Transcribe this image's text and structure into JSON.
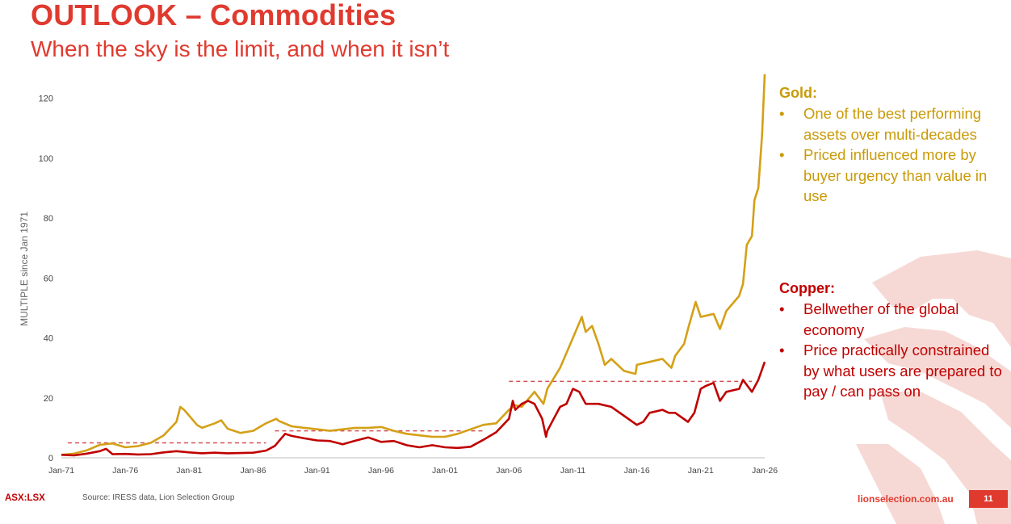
{
  "slide": {
    "title": "OUTLOOK – Commodities",
    "subtitle": "When the sky is the limit, and when it isn’t",
    "page_number": "11"
  },
  "footer": {
    "ticker": "ASX:LSX",
    "source": "Source: IRESS data, Lion Selection Group",
    "website": "lionselection.com.au"
  },
  "panels": {
    "gold": {
      "heading": "Gold:",
      "bullets": [
        "One of the best performing assets over multi-decades",
        "Priced influenced more by buyer urgency than value in use"
      ]
    },
    "copper": {
      "heading": "Copper:",
      "bullets": [
        "Bellwether of the global economy",
        "Price practically constrained by what users are prepared to pay / can pass on"
      ]
    }
  },
  "colors": {
    "brand_red": "#e03a2f",
    "gold": "#d4a017",
    "gold_text": "#c99a06",
    "copper": "#c00000",
    "reference_line": "#d45050"
  },
  "chart_data": {
    "type": "line",
    "title": "",
    "xlabel": "",
    "ylabel": "MULTIPLE since Jan 1971",
    "x_range": [
      1971,
      2026
    ],
    "ylim": [
      0,
      125
    ],
    "y_ticks": [
      0,
      20,
      40,
      60,
      80,
      100,
      120
    ],
    "x_ticks": [
      {
        "year": 1971,
        "label": "Jan-71"
      },
      {
        "year": 1976,
        "label": "Jan-76"
      },
      {
        "year": 1981,
        "label": "Jan-81"
      },
      {
        "year": 1986,
        "label": "Jan-86"
      },
      {
        "year": 1991,
        "label": "Jan-91"
      },
      {
        "year": 1996,
        "label": "Jan-96"
      },
      {
        "year": 2001,
        "label": "Jan-01"
      },
      {
        "year": 2006,
        "label": "Jan-06"
      },
      {
        "year": 2011,
        "label": "Jan-11"
      },
      {
        "year": 2016,
        "label": "Jan-16"
      },
      {
        "year": 2021,
        "label": "Jan-21"
      },
      {
        "year": 2026,
        "label": "Jan-26"
      }
    ],
    "series": [
      {
        "name": "Gold",
        "color": "#d4a017",
        "points": [
          [
            1971,
            1
          ],
          [
            1972,
            1.4
          ],
          [
            1973,
            2.5
          ],
          [
            1974,
            4.3
          ],
          [
            1975,
            4.8
          ],
          [
            1976,
            3.5
          ],
          [
            1977,
            3.9
          ],
          [
            1978,
            5
          ],
          [
            1979,
            7.5
          ],
          [
            1980,
            12
          ],
          [
            1980.3,
            17
          ],
          [
            1980.6,
            16
          ],
          [
            1981,
            14
          ],
          [
            1981.6,
            11
          ],
          [
            1982,
            10
          ],
          [
            1983,
            11.5
          ],
          [
            1983.5,
            12.5
          ],
          [
            1984,
            9.7
          ],
          [
            1985,
            8.3
          ],
          [
            1986,
            9
          ],
          [
            1987,
            11.5
          ],
          [
            1987.8,
            13
          ],
          [
            1988,
            12.3
          ],
          [
            1989,
            10.5
          ],
          [
            1990,
            10
          ],
          [
            1991,
            9.5
          ],
          [
            1992,
            9
          ],
          [
            1993,
            9.5
          ],
          [
            1994,
            10
          ],
          [
            1995,
            10
          ],
          [
            1996,
            10.3
          ],
          [
            1997,
            9
          ],
          [
            1998,
            8
          ],
          [
            1999,
            7.5
          ],
          [
            2000,
            7
          ],
          [
            2001,
            7
          ],
          [
            2002,
            8
          ],
          [
            2003,
            9.5
          ],
          [
            2004,
            11
          ],
          [
            2005,
            11.5
          ],
          [
            2006,
            16
          ],
          [
            2006.5,
            17.5
          ],
          [
            2007,
            17
          ],
          [
            2008,
            22
          ],
          [
            2008.7,
            18
          ],
          [
            2009,
            23
          ],
          [
            2010,
            30
          ],
          [
            2011,
            40
          ],
          [
            2011.7,
            47
          ],
          [
            2012,
            42
          ],
          [
            2012.5,
            44
          ],
          [
            2013,
            38
          ],
          [
            2013.5,
            31
          ],
          [
            2014,
            33
          ],
          [
            2015,
            29
          ],
          [
            2015.9,
            28
          ],
          [
            2016,
            31
          ],
          [
            2017,
            32
          ],
          [
            2018,
            33
          ],
          [
            2018.7,
            30
          ],
          [
            2019,
            34
          ],
          [
            2019.7,
            38
          ],
          [
            2020,
            43
          ],
          [
            2020.6,
            52
          ],
          [
            2021,
            47
          ],
          [
            2022,
            48
          ],
          [
            2022.5,
            43
          ],
          [
            2023,
            49
          ],
          [
            2024,
            54
          ],
          [
            2024.3,
            58
          ],
          [
            2024.6,
            71
          ],
          [
            2025,
            74
          ],
          [
            2025.2,
            86
          ],
          [
            2025.5,
            90
          ],
          [
            2025.8,
            108
          ],
          [
            2026,
            128
          ]
        ]
      },
      {
        "name": "Copper",
        "color": "#c00000",
        "points": [
          [
            1971,
            1
          ],
          [
            1972,
            0.8
          ],
          [
            1973,
            1.4
          ],
          [
            1974,
            2.2
          ],
          [
            1974.5,
            3
          ],
          [
            1975,
            1.2
          ],
          [
            1976,
            1.3
          ],
          [
            1977,
            1.1
          ],
          [
            1978,
            1.2
          ],
          [
            1979,
            1.8
          ],
          [
            1980,
            2.2
          ],
          [
            1981,
            1.8
          ],
          [
            1982,
            1.5
          ],
          [
            1983,
            1.7
          ],
          [
            1984,
            1.5
          ],
          [
            1985,
            1.6
          ],
          [
            1986,
            1.7
          ],
          [
            1987,
            2.4
          ],
          [
            1987.7,
            4
          ],
          [
            1988,
            5.5
          ],
          [
            1988.5,
            8
          ],
          [
            1989,
            7.3
          ],
          [
            1990,
            6.5
          ],
          [
            1991,
            5.8
          ],
          [
            1992,
            5.6
          ],
          [
            1993,
            4.5
          ],
          [
            1994,
            5.7
          ],
          [
            1995,
            6.8
          ],
          [
            1996,
            5.3
          ],
          [
            1997,
            5.6
          ],
          [
            1998,
            4.2
          ],
          [
            1999,
            3.5
          ],
          [
            2000,
            4.2
          ],
          [
            2001,
            3.5
          ],
          [
            2002,
            3.3
          ],
          [
            2003,
            3.7
          ],
          [
            2004,
            6
          ],
          [
            2005,
            8.5
          ],
          [
            2006,
            13
          ],
          [
            2006.3,
            19
          ],
          [
            2006.5,
            16
          ],
          [
            2007,
            18
          ],
          [
            2007.5,
            19
          ],
          [
            2008,
            18
          ],
          [
            2008.6,
            13
          ],
          [
            2008.9,
            7
          ],
          [
            2009,
            9
          ],
          [
            2009.5,
            13
          ],
          [
            2010,
            17
          ],
          [
            2010.5,
            18
          ],
          [
            2011,
            23
          ],
          [
            2011.5,
            22
          ],
          [
            2012,
            18
          ],
          [
            2013,
            18
          ],
          [
            2014,
            17
          ],
          [
            2015,
            14
          ],
          [
            2016,
            11
          ],
          [
            2016.5,
            12
          ],
          [
            2017,
            15
          ],
          [
            2018,
            16
          ],
          [
            2018.5,
            15
          ],
          [
            2019,
            15
          ],
          [
            2020,
            12
          ],
          [
            2020.5,
            15
          ],
          [
            2021,
            23
          ],
          [
            2021.4,
            24
          ],
          [
            2022,
            25
          ],
          [
            2022.5,
            19
          ],
          [
            2023,
            22
          ],
          [
            2024,
            23
          ],
          [
            2024.3,
            26
          ],
          [
            2025,
            22
          ],
          [
            2025.5,
            26
          ],
          [
            2026,
            32
          ]
        ]
      }
    ],
    "reference_lines": [
      {
        "series": "Copper",
        "x": [
          1971.5,
          1987
        ],
        "y": 5
      },
      {
        "series": "Copper",
        "x": [
          1987.7,
          2004
        ],
        "y": 9
      },
      {
        "series": "Copper",
        "x": [
          2006,
          2025
        ],
        "y": 25.5
      }
    ]
  }
}
